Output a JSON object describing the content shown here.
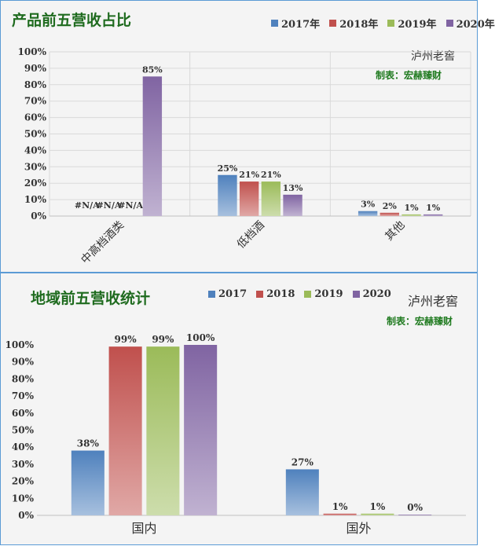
{
  "colors": {
    "2017": "#4f81bd",
    "2018": "#c0504d",
    "2019": "#9bbb59",
    "2020": "#8064a2"
  },
  "chart_data": [
    {
      "type": "bar",
      "title": "产品前五营收占比",
      "brand": "泸州老窖",
      "maker": "制表：宏赫臻财",
      "legend_position": "top-right",
      "categories": [
        "中高档酒类",
        "低档酒",
        "其他"
      ],
      "series": [
        {
          "name": "2017年",
          "key": "2017",
          "values": [
            null,
            25,
            3
          ],
          "labels": [
            "#N/A",
            "25%",
            "3%"
          ]
        },
        {
          "name": "2018年",
          "key": "2018",
          "values": [
            null,
            21,
            2
          ],
          "labels": [
            "#N/A",
            "21%",
            "2%"
          ]
        },
        {
          "name": "2019年",
          "key": "2019",
          "values": [
            null,
            21,
            1
          ],
          "labels": [
            "#N/A",
            "21%",
            "1%"
          ]
        },
        {
          "name": "2020年",
          "key": "2020",
          "values": [
            85,
            13,
            1
          ],
          "labels": [
            "85%",
            "13%",
            "1%"
          ]
        }
      ],
      "y_ticks": [
        "0%",
        "10%",
        "20%",
        "30%",
        "40%",
        "50%",
        "60%",
        "70%",
        "80%",
        "90%",
        "100%"
      ],
      "ylim": [
        0,
        100
      ],
      "grid": true
    },
    {
      "type": "bar",
      "title": "地域前五营收统计",
      "brand": "泸州老窖",
      "maker": "制表：宏赫臻财",
      "legend_position": "top",
      "categories": [
        "国内",
        "国外"
      ],
      "series": [
        {
          "name": "2017",
          "key": "2017",
          "values": [
            38,
            27
          ],
          "labels": [
            "38%",
            "27%"
          ]
        },
        {
          "name": "2018",
          "key": "2018",
          "values": [
            99,
            1
          ],
          "labels": [
            "99%",
            "1%"
          ]
        },
        {
          "name": "2019",
          "key": "2019",
          "values": [
            99,
            1
          ],
          "labels": [
            "99%",
            "1%"
          ]
        },
        {
          "name": "2020",
          "key": "2020",
          "values": [
            100,
            0
          ],
          "labels": [
            "100%",
            "0%"
          ]
        }
      ],
      "y_ticks": [
        "0%",
        "10%",
        "20%",
        "30%",
        "40%",
        "50%",
        "60%",
        "70%",
        "80%",
        "90%",
        "100%"
      ],
      "ylim": [
        0,
        100
      ],
      "grid": false
    }
  ]
}
